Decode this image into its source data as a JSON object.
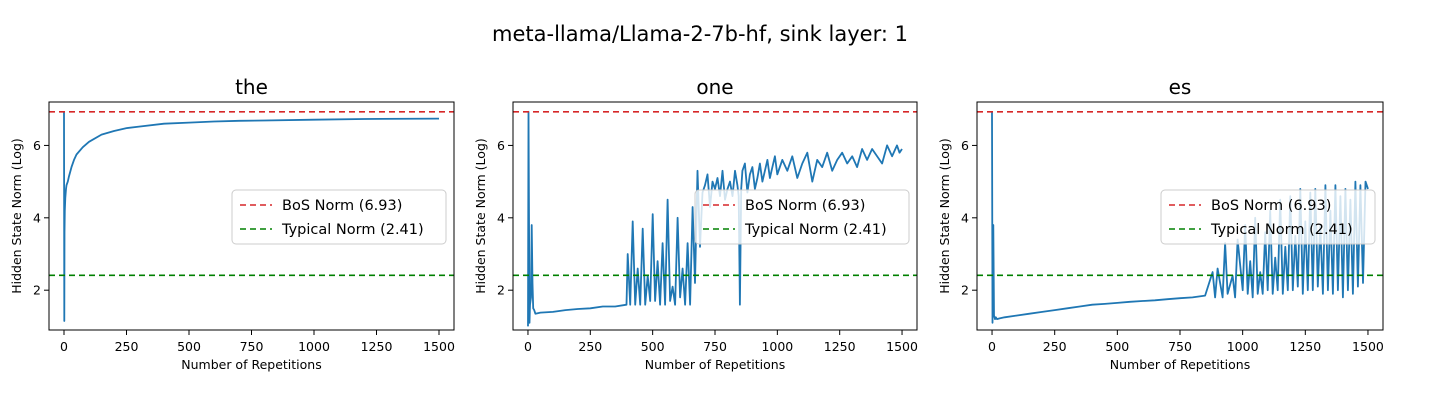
{
  "suptitle": "meta-llama/Llama-2-7b-hf, sink layer: 1",
  "colors": {
    "series": "#1f77b4",
    "bos_line": "#d62728",
    "typical_line": "#008000",
    "axis": "#000000",
    "legend_border": "#cccccc"
  },
  "chart_data": [
    {
      "type": "line",
      "title": "the",
      "xlabel": "Number of Repetitions",
      "ylabel": "Hidden State Norm (Log)",
      "xlim": [
        -60,
        1560
      ],
      "ylim": [
        0.9,
        7.2
      ],
      "xticks": [
        0,
        250,
        500,
        750,
        1000,
        1250,
        1500
      ],
      "yticks": [
        2,
        4,
        6
      ],
      "hlines": [
        {
          "label": "BoS Norm (6.93)",
          "value": 6.93,
          "style": "dashed",
          "color": "#d62728"
        },
        {
          "label": "Typical Norm (2.41)",
          "value": 2.41,
          "style": "dashed",
          "color": "#008000"
        }
      ],
      "legend_loc": "center-right",
      "series": [
        {
          "x": [
            0,
            1,
            2,
            3,
            5,
            8,
            10,
            15,
            20,
            30,
            40,
            50,
            75,
            100,
            150,
            200,
            250,
            300,
            400,
            500,
            600,
            700,
            800,
            1000,
            1200,
            1500
          ],
          "y": [
            6.93,
            1.15,
            3.6,
            4.2,
            4.55,
            4.8,
            4.9,
            5.0,
            5.15,
            5.4,
            5.6,
            5.75,
            5.95,
            6.1,
            6.3,
            6.4,
            6.48,
            6.52,
            6.6,
            6.63,
            6.66,
            6.68,
            6.69,
            6.71,
            6.73,
            6.74
          ]
        }
      ]
    },
    {
      "type": "line",
      "title": "one",
      "xlabel": "Number of Repetitions",
      "ylabel": "Hidden State Norm (Log)",
      "xlim": [
        -60,
        1560
      ],
      "ylim": [
        0.9,
        7.2
      ],
      "xticks": [
        0,
        250,
        500,
        750,
        1000,
        1250,
        1500
      ],
      "yticks": [
        2,
        4,
        6
      ],
      "hlines": [
        {
          "label": "BoS Norm (6.93)",
          "value": 6.93,
          "style": "dashed",
          "color": "#d62728"
        },
        {
          "label": "Typical Norm (2.41)",
          "value": 2.41,
          "style": "dashed",
          "color": "#008000"
        }
      ],
      "legend_loc": "center-right",
      "series": [
        {
          "x": [
            0,
            2,
            6,
            8,
            12,
            15,
            18,
            21,
            25,
            30,
            50,
            100,
            150,
            200,
            250,
            300,
            350,
            395,
            400,
            410,
            420,
            430,
            440,
            450,
            460,
            470,
            480,
            490,
            500,
            510,
            520,
            530,
            540,
            550,
            560,
            570,
            580,
            590,
            600,
            610,
            620,
            630,
            640,
            650,
            660,
            670,
            680,
            690,
            700,
            710,
            720,
            730,
            740,
            750,
            760,
            770,
            780,
            790,
            800,
            810,
            820,
            830,
            840,
            845,
            850,
            855,
            860,
            870,
            880,
            890,
            900,
            910,
            920,
            930,
            940,
            950,
            960,
            970,
            980,
            990,
            1000,
            1020,
            1040,
            1060,
            1080,
            1100,
            1120,
            1140,
            1160,
            1180,
            1200,
            1220,
            1240,
            1260,
            1280,
            1300,
            1320,
            1340,
            1360,
            1380,
            1400,
            1420,
            1440,
            1460,
            1480,
            1490,
            1500
          ],
          "y": [
            1.0,
            6.93,
            1.1,
            1.6,
            1.8,
            3.8,
            2.2,
            1.5,
            1.45,
            1.35,
            1.38,
            1.4,
            1.45,
            1.48,
            1.5,
            1.55,
            1.55,
            1.6,
            3.0,
            1.6,
            3.9,
            1.6,
            2.6,
            1.6,
            3.7,
            1.6,
            2.4,
            1.7,
            4.1,
            1.7,
            2.8,
            1.6,
            3.3,
            1.6,
            4.5,
            1.7,
            2.1,
            1.6,
            4.0,
            1.8,
            2.6,
            1.6,
            3.3,
            1.6,
            4.3,
            2.2,
            5.3,
            3.2,
            4.7,
            4.9,
            5.2,
            4.3,
            5.0,
            4.8,
            5.1,
            4.6,
            5.3,
            4.5,
            4.8,
            5.0,
            4.6,
            5.3,
            4.9,
            4.6,
            1.6,
            4.8,
            5.3,
            5.5,
            4.7,
            5.2,
            5.4,
            4.8,
            5.1,
            5.5,
            5.0,
            5.3,
            5.6,
            5.1,
            5.4,
            5.7,
            5.2,
            5.6,
            5.3,
            5.7,
            5.1,
            5.5,
            5.8,
            5.0,
            5.6,
            5.4,
            5.8,
            5.3,
            5.6,
            5.8,
            5.5,
            5.7,
            5.4,
            5.9,
            5.6,
            5.9,
            5.7,
            5.5,
            6.0,
            5.7,
            6.0,
            5.8,
            5.9
          ]
        }
      ]
    },
    {
      "type": "line",
      "title": "es",
      "xlabel": "Number of Repetitions",
      "ylabel": "Hidden State Norm (Log)",
      "xlim": [
        -60,
        1560
      ],
      "ylim": [
        0.9,
        7.2
      ],
      "xticks": [
        0,
        250,
        500,
        750,
        1000,
        1250,
        1500
      ],
      "yticks": [
        2,
        4,
        6
      ],
      "hlines": [
        {
          "label": "BoS Norm (6.93)",
          "value": 6.93,
          "style": "dashed",
          "color": "#d62728"
        },
        {
          "label": "Typical Norm (2.41)",
          "value": 2.41,
          "style": "dashed",
          "color": "#008000"
        }
      ],
      "legend_loc": "center-right",
      "series": [
        {
          "x": [
            0,
            2,
            5,
            8,
            12,
            15,
            20,
            30,
            50,
            100,
            150,
            200,
            250,
            300,
            350,
            400,
            450,
            500,
            550,
            600,
            650,
            700,
            750,
            800,
            850,
            880,
            890,
            900,
            920,
            930,
            940,
            960,
            970,
            980,
            1000,
            1010,
            1020,
            1030,
            1040,
            1050,
            1060,
            1070,
            1080,
            1090,
            1100,
            1110,
            1120,
            1130,
            1140,
            1150,
            1160,
            1170,
            1180,
            1190,
            1200,
            1210,
            1220,
            1230,
            1240,
            1250,
            1260,
            1270,
            1280,
            1290,
            1300,
            1310,
            1320,
            1330,
            1340,
            1350,
            1360,
            1370,
            1380,
            1390,
            1400,
            1410,
            1420,
            1430,
            1440,
            1450,
            1460,
            1470,
            1480,
            1490,
            1500
          ],
          "y": [
            6.93,
            1.1,
            3.8,
            1.3,
            1.2,
            1.25,
            1.2,
            1.22,
            1.25,
            1.3,
            1.35,
            1.4,
            1.45,
            1.5,
            1.55,
            1.6,
            1.62,
            1.65,
            1.68,
            1.7,
            1.72,
            1.75,
            1.78,
            1.8,
            1.85,
            2.5,
            1.8,
            2.6,
            1.8,
            3.3,
            1.9,
            2.4,
            1.8,
            3.4,
            2.0,
            3.8,
            1.9,
            2.8,
            1.8,
            4.0,
            1.9,
            2.5,
            1.9,
            3.6,
            2.0,
            4.2,
            1.9,
            2.9,
            2.0,
            4.5,
            1.9,
            3.2,
            2.0,
            4.6,
            2.0,
            3.5,
            2.1,
            4.8,
            1.9,
            3.9,
            2.0,
            4.7,
            2.0,
            4.8,
            2.1,
            3.8,
            1.9,
            4.9,
            2.0,
            4.2,
            1.9,
            4.9,
            2.0,
            4.6,
            1.8,
            4.8,
            2.0,
            4.5,
            1.9,
            5.0,
            2.1,
            4.9,
            2.2,
            5.0,
            4.8
          ]
        }
      ]
    }
  ]
}
